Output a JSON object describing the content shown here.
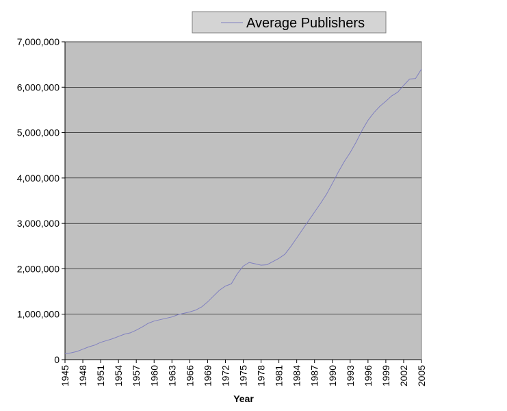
{
  "chart_data": {
    "type": "line",
    "title": "",
    "xlabel": "Year",
    "ylabel": "",
    "xlim": [
      1945,
      2005
    ],
    "ylim": [
      0,
      7000000
    ],
    "x_ticks": [
      "1945",
      "1948",
      "1951",
      "1954",
      "1957",
      "1960",
      "1963",
      "1966",
      "1969",
      "1972",
      "1975",
      "1978",
      "1981",
      "1984",
      "1987",
      "1990",
      "1993",
      "1996",
      "1999",
      "2002",
      "2005"
    ],
    "y_ticks": [
      "0",
      "1,000,000",
      "2,000,000",
      "3,000,000",
      "4,000,000",
      "5,000,000",
      "6,000,000",
      "7,000,000"
    ],
    "y_tick_values": [
      0,
      1000000,
      2000000,
      3000000,
      4000000,
      5000000,
      6000000,
      7000000
    ],
    "grid": "horizontal",
    "legend_position": "top",
    "plot_background": "#c0c0c0",
    "series": [
      {
        "name": "Average Publishers",
        "color": "#8080c0",
        "x": [
          1945,
          1946,
          1947,
          1948,
          1949,
          1950,
          1951,
          1952,
          1953,
          1954,
          1955,
          1956,
          1957,
          1958,
          1959,
          1960,
          1961,
          1962,
          1963,
          1964,
          1965,
          1966,
          1967,
          1968,
          1969,
          1970,
          1971,
          1972,
          1973,
          1974,
          1975,
          1976,
          1977,
          1978,
          1979,
          1980,
          1981,
          1982,
          1983,
          1984,
          1985,
          1986,
          1987,
          1988,
          1989,
          1990,
          1991,
          1992,
          1993,
          1994,
          1995,
          1996,
          1997,
          1998,
          1999,
          2000,
          2001,
          2002,
          2003,
          2004,
          2005
        ],
        "values": [
          130000,
          150000,
          180000,
          230000,
          280000,
          320000,
          380000,
          420000,
          460000,
          510000,
          560000,
          590000,
          650000,
          720000,
          800000,
          850000,
          880000,
          910000,
          940000,
          990000,
          1020000,
          1050000,
          1090000,
          1160000,
          1270000,
          1400000,
          1530000,
          1620000,
          1670000,
          1890000,
          2060000,
          2140000,
          2110000,
          2080000,
          2090000,
          2160000,
          2230000,
          2320000,
          2490000,
          2680000,
          2870000,
          3060000,
          3250000,
          3440000,
          3640000,
          3880000,
          4130000,
          4360000,
          4560000,
          4790000,
          5050000,
          5270000,
          5440000,
          5580000,
          5690000,
          5810000,
          5890000,
          6040000,
          6180000,
          6190000,
          6400000
        ]
      }
    ]
  }
}
